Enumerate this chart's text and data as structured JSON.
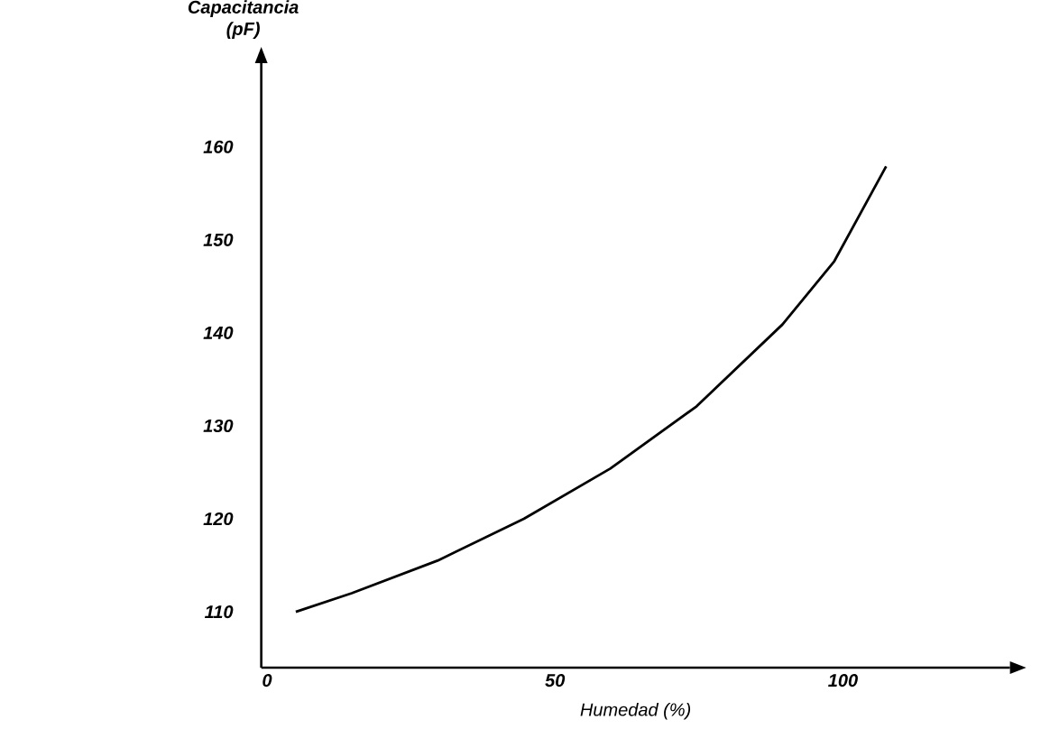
{
  "chart_data": {
    "type": "line",
    "xlabel": "Humedad (%)",
    "ylabel": "Capacitancia (pF)",
    "x": [
      5,
      14.7,
      29.6,
      44.6,
      59.6,
      74.6,
      89.5,
      98.5,
      107.5
    ],
    "values": [
      110,
      112,
      115.5,
      120,
      125.4,
      132.1,
      140.9,
      147.7,
      157.9
    ],
    "color": "#000000",
    "xlim": [
      -1,
      129
    ],
    "ylim": [
      104,
      169
    ],
    "xticks": [
      0,
      50,
      100
    ],
    "yticks": [
      110,
      120,
      130,
      140,
      150,
      160
    ],
    "grid": false,
    "marker": "none",
    "line_style": "solid"
  }
}
